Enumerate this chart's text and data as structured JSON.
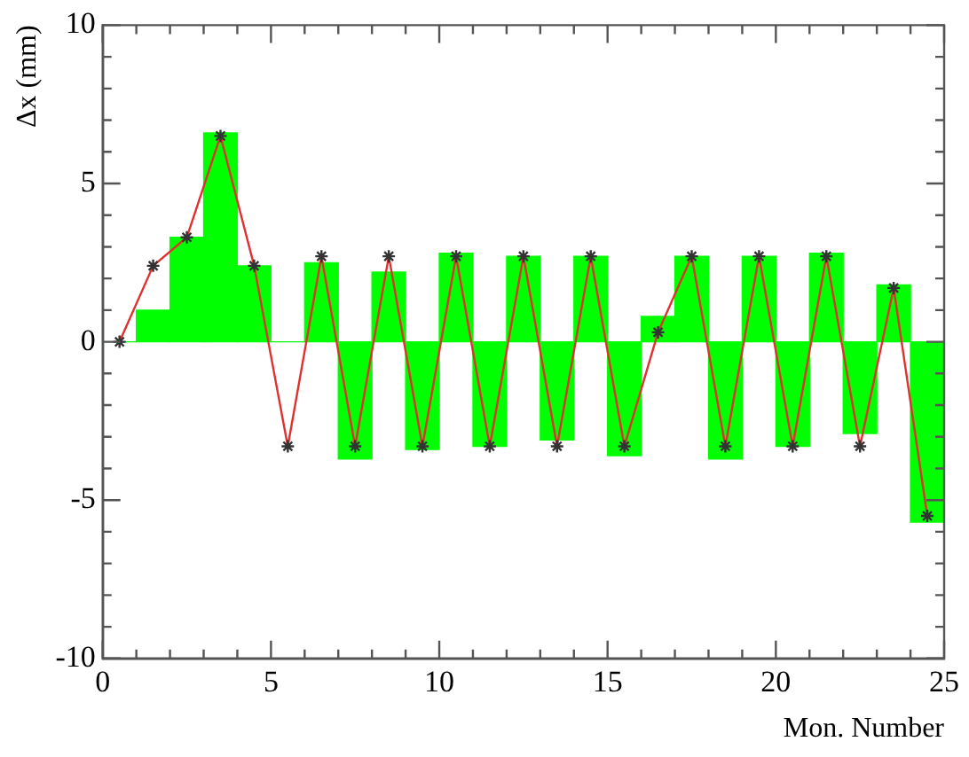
{
  "chart_data": {
    "type": "histogram",
    "xlabel": "Mon. Number",
    "ylabel": "Δx (mm)",
    "bins": [
      0,
      1,
      2,
      3,
      4,
      5,
      6,
      7,
      8,
      9,
      10,
      11,
      12,
      13,
      14,
      15,
      16,
      17,
      18,
      19,
      20,
      21,
      22,
      23,
      24,
      25
    ],
    "values": [
      0,
      1.0,
      3.3,
      6.6,
      2.4,
      0,
      2.5,
      -3.7,
      2.2,
      -3.4,
      2.8,
      -3.3,
      2.7,
      -3.1,
      2.7,
      -3.6,
      0.8,
      2.7,
      -3.7,
      2.7,
      -3.3,
      2.8,
      -2.9,
      1.8,
      -5.7
    ],
    "color": "#00ff00",
    "series": [
      {
        "type": "line",
        "color": "#e03030",
        "x": [
          0.5,
          1.5,
          2.5,
          3.5,
          4.5,
          5.5,
          6.5,
          7.5,
          8.5,
          9.5,
          10.5,
          11.5,
          12.5,
          13.5,
          14.5,
          15.5,
          16.5,
          17.5,
          18.5,
          19.5,
          20.5,
          21.5,
          22.5,
          23.5,
          24.5
        ],
        "values": [
          0,
          2.4,
          3.3,
          6.5,
          2.4,
          -3.3,
          2.7,
          -3.3,
          2.7,
          -3.3,
          2.7,
          -3.3,
          2.7,
          -3.3,
          2.7,
          -3.3,
          0.3,
          2.7,
          -3.3,
          2.7,
          -3.3,
          2.7,
          -3.3,
          1.7,
          -5.5
        ]
      }
    ],
    "marker": "cross",
    "line_style": "solid",
    "grid": false,
    "legend": false,
    "xlim": [
      0,
      25
    ],
    "xticks": [
      0,
      {
        "value": 1,
        "label": null
      },
      {
        "value": 2,
        "label": null
      },
      {
        "value": 3,
        "label": null
      },
      {
        "value": 4,
        "label": null
      },
      5,
      {
        "value": 6,
        "label": null
      },
      {
        "value": 7,
        "label": null
      },
      {
        "value": 8,
        "label": null
      },
      {
        "value": 9,
        "label": null
      },
      10,
      {
        "value": 11,
        "label": null
      },
      {
        "value": 12,
        "label": null
      },
      {
        "value": 13,
        "label": null
      },
      {
        "value": 14,
        "label": null
      },
      15,
      {
        "value": 16,
        "label": null
      },
      {
        "value": 17,
        "label": null
      },
      {
        "value": 18,
        "label": null
      },
      {
        "value": 19,
        "label": null
      },
      20,
      {
        "value": 21,
        "label": null
      },
      {
        "value": 22,
        "label": null
      },
      {
        "value": 23,
        "label": null
      },
      {
        "value": 24,
        "label": null
      },
      25
    ],
    "ylim": [
      -10,
      10
    ],
    "yticks": [
      -10,
      {
        "value": -9,
        "label": null
      },
      {
        "value": -8,
        "label": null
      },
      {
        "value": -7,
        "label": null
      },
      {
        "value": -6,
        "label": null
      },
      -5,
      {
        "value": -4,
        "label": null
      },
      {
        "value": -3,
        "label": null
      },
      {
        "value": -2,
        "label": null
      },
      {
        "value": -1,
        "label": null
      },
      0,
      {
        "value": 1,
        "label": null
      },
      {
        "value": 2,
        "label": null
      },
      {
        "value": 3,
        "label": null
      },
      {
        "value": 4,
        "label": null
      },
      5,
      {
        "value": 6,
        "label": null
      },
      {
        "value": 7,
        "label": null
      },
      {
        "value": 8,
        "label": null
      },
      {
        "value": 9,
        "label": null
      },
      10
    ]
  }
}
